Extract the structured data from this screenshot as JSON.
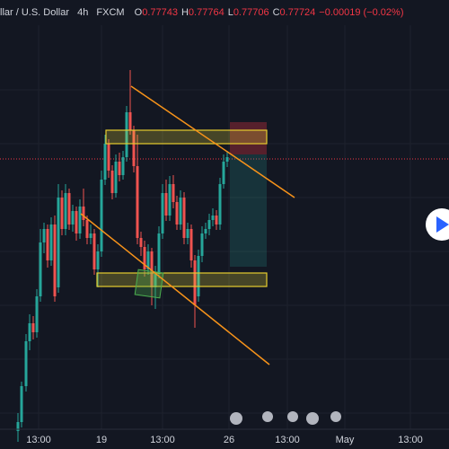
{
  "header": {
    "symbol": "llar / U.S. Dollar",
    "interval": "4h",
    "exchange": "FXCM",
    "ohlc": [
      {
        "label": "O",
        "value": "0.77743"
      },
      {
        "label": "H",
        "value": "0.77764"
      },
      {
        "label": "L",
        "value": "0.77706"
      },
      {
        "label": "C",
        "value": "0.77724"
      }
    ],
    "change": "−0.00019 (−0.02%)"
  },
  "x_axis": {
    "labels": [
      "13:00",
      "19",
      "13:00",
      "26",
      "13:00",
      "May",
      "13:00"
    ]
  }
}
